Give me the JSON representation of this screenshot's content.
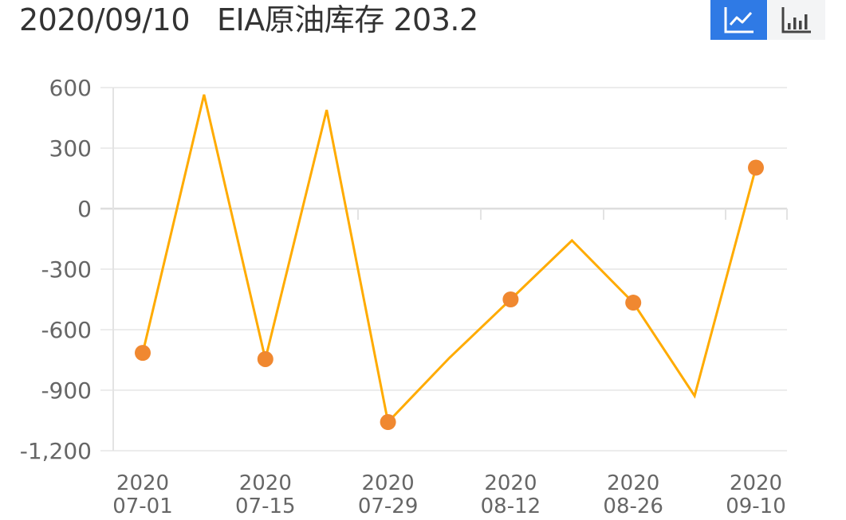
{
  "header": {
    "date": "2020/09/10",
    "indicator": "EIA原油库存",
    "value": "203.2"
  },
  "toolbar": {
    "line_chart_icon": "line-chart-icon",
    "bar_chart_icon": "bar-chart-icon",
    "active": "line"
  },
  "colors": {
    "line": "#ffab00",
    "marker": "#f08830",
    "active_toggle": "#2f7ae5",
    "inactive_toggle": "#f3f4f5",
    "grid": "#ececec",
    "axis_text": "#666666"
  },
  "chart_data": {
    "type": "line",
    "title": "2020/09/10 EIA原油库存 203.2",
    "xlabel": "",
    "ylabel": "",
    "ylim": [
      -1200,
      600
    ],
    "yticks": [
      "600",
      "300",
      "0",
      "-300",
      "-600",
      "-900",
      "-1,200"
    ],
    "ytick_values": [
      600,
      300,
      0,
      -300,
      -600,
      -900,
      -1200
    ],
    "x": [
      "2020-07-01",
      "2020-07-08",
      "2020-07-15",
      "2020-07-22",
      "2020-07-29",
      "2020-08-05",
      "2020-08-12",
      "2020-08-19",
      "2020-08-26",
      "2020-09-02",
      "2020-09-10"
    ],
    "xtick_labels": [
      {
        "year": "2020",
        "date": "07-01"
      },
      {
        "year": "2020",
        "date": "07-15"
      },
      {
        "year": "2020",
        "date": "07-29"
      },
      {
        "year": "2020",
        "date": "08-12"
      },
      {
        "year": "2020",
        "date": "08-26"
      },
      {
        "year": "2020",
        "date": "09-10"
      }
    ],
    "series": [
      {
        "name": "EIA原油库存",
        "values": [
          -715,
          565,
          -746,
          489,
          -1058,
          -740,
          -450,
          -158,
          -466,
          -928,
          203.2
        ],
        "markers_on": [
          0,
          2,
          4,
          6,
          8,
          10
        ]
      }
    ],
    "grid": true,
    "legend": "none"
  }
}
